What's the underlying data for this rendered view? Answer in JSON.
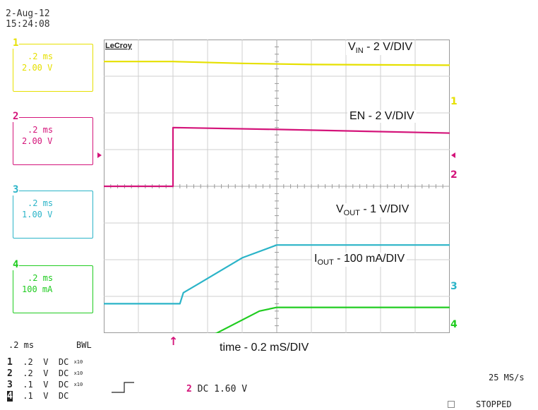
{
  "datetime": {
    "date": "2-Aug-12",
    "time": "15:24:08"
  },
  "channels": [
    {
      "num": "1",
      "timebase": ".2 ms",
      "scale": "2.00 V",
      "color": "#e6e000"
    },
    {
      "num": "2",
      "timebase": ".2 ms",
      "scale": "2.00 V",
      "color": "#d4147a"
    },
    {
      "num": "3",
      "timebase": ".2 ms",
      "scale": "1.00 V",
      "color": "#2bb4c8"
    },
    {
      "num": "4",
      "timebase": ".2 ms",
      "scale": "100 mA",
      "color": "#20cc20"
    }
  ],
  "screen": {
    "brand": "LeCroy"
  },
  "annotations": {
    "vin": {
      "main": "V",
      "sub": "IN",
      "rest": " - 2 V/DIV"
    },
    "en": {
      "text": "EN - 2 V/DIV"
    },
    "vout": {
      "main": "V",
      "sub": "OUT",
      "rest": " - 1 V/DIV"
    },
    "iout": {
      "main": "I",
      "sub": "OUT",
      "rest": " - 100 mA/DIV"
    },
    "time": {
      "text": "time - 0.2 mS/DIV"
    }
  },
  "right_markers": [
    "1",
    "2",
    "3",
    "4"
  ],
  "bottom": {
    "timebase": ".2 ms",
    "bwl": "BWL",
    "rows": [
      {
        "num": "1",
        "val": ".2",
        "unit": "V",
        "coupling": "DC",
        "probe": "x10"
      },
      {
        "num": "2",
        "val": ".2",
        "unit": "V",
        "coupling": "DC",
        "probe": "x10"
      },
      {
        "num": "3",
        "val": ".1",
        "unit": "V",
        "coupling": "DC",
        "probe": "x10"
      },
      {
        "num": "4",
        "val": ".1",
        "unit": "V",
        "coupling": "DC",
        "probe": ""
      }
    ],
    "trigger": {
      "channel": "2",
      "coupling": "DC",
      "level": "1.60 V"
    },
    "sample_rate": "25 MS/s",
    "status": "STOPPED"
  },
  "chart_data": {
    "type": "line",
    "x_unit": "ms",
    "xlim": [
      0,
      2.0
    ],
    "series": [
      {
        "name": "VIN",
        "color": "#e6e000",
        "offset_div": 3.4,
        "x": [
          0,
          0.4,
          0.8,
          1.2,
          2.0
        ],
        "y": [
          0,
          0,
          -0.05,
          -0.08,
          -0.1
        ]
      },
      {
        "name": "EN",
        "color": "#d4147a",
        "offset_div": 0.0,
        "x": [
          0,
          0.4,
          0.4,
          1.0,
          2.0
        ],
        "y": [
          0,
          0,
          1.6,
          1.55,
          1.45
        ]
      },
      {
        "name": "VOUT",
        "color": "#2bb4c8",
        "offset_div": -3.2,
        "x": [
          0,
          0.44,
          0.46,
          0.55,
          0.8,
          1.0,
          2.0
        ],
        "y": [
          0,
          0,
          0.3,
          0.55,
          1.25,
          1.6,
          1.6
        ]
      },
      {
        "name": "IOUT",
        "color": "#20cc20",
        "offset_div": -4.8,
        "x": [
          0,
          0.44,
          0.46,
          0.55,
          0.9,
          1.0,
          2.0
        ],
        "y": [
          0,
          0,
          0.25,
          0.55,
          1.4,
          1.5,
          1.5
        ]
      }
    ]
  }
}
